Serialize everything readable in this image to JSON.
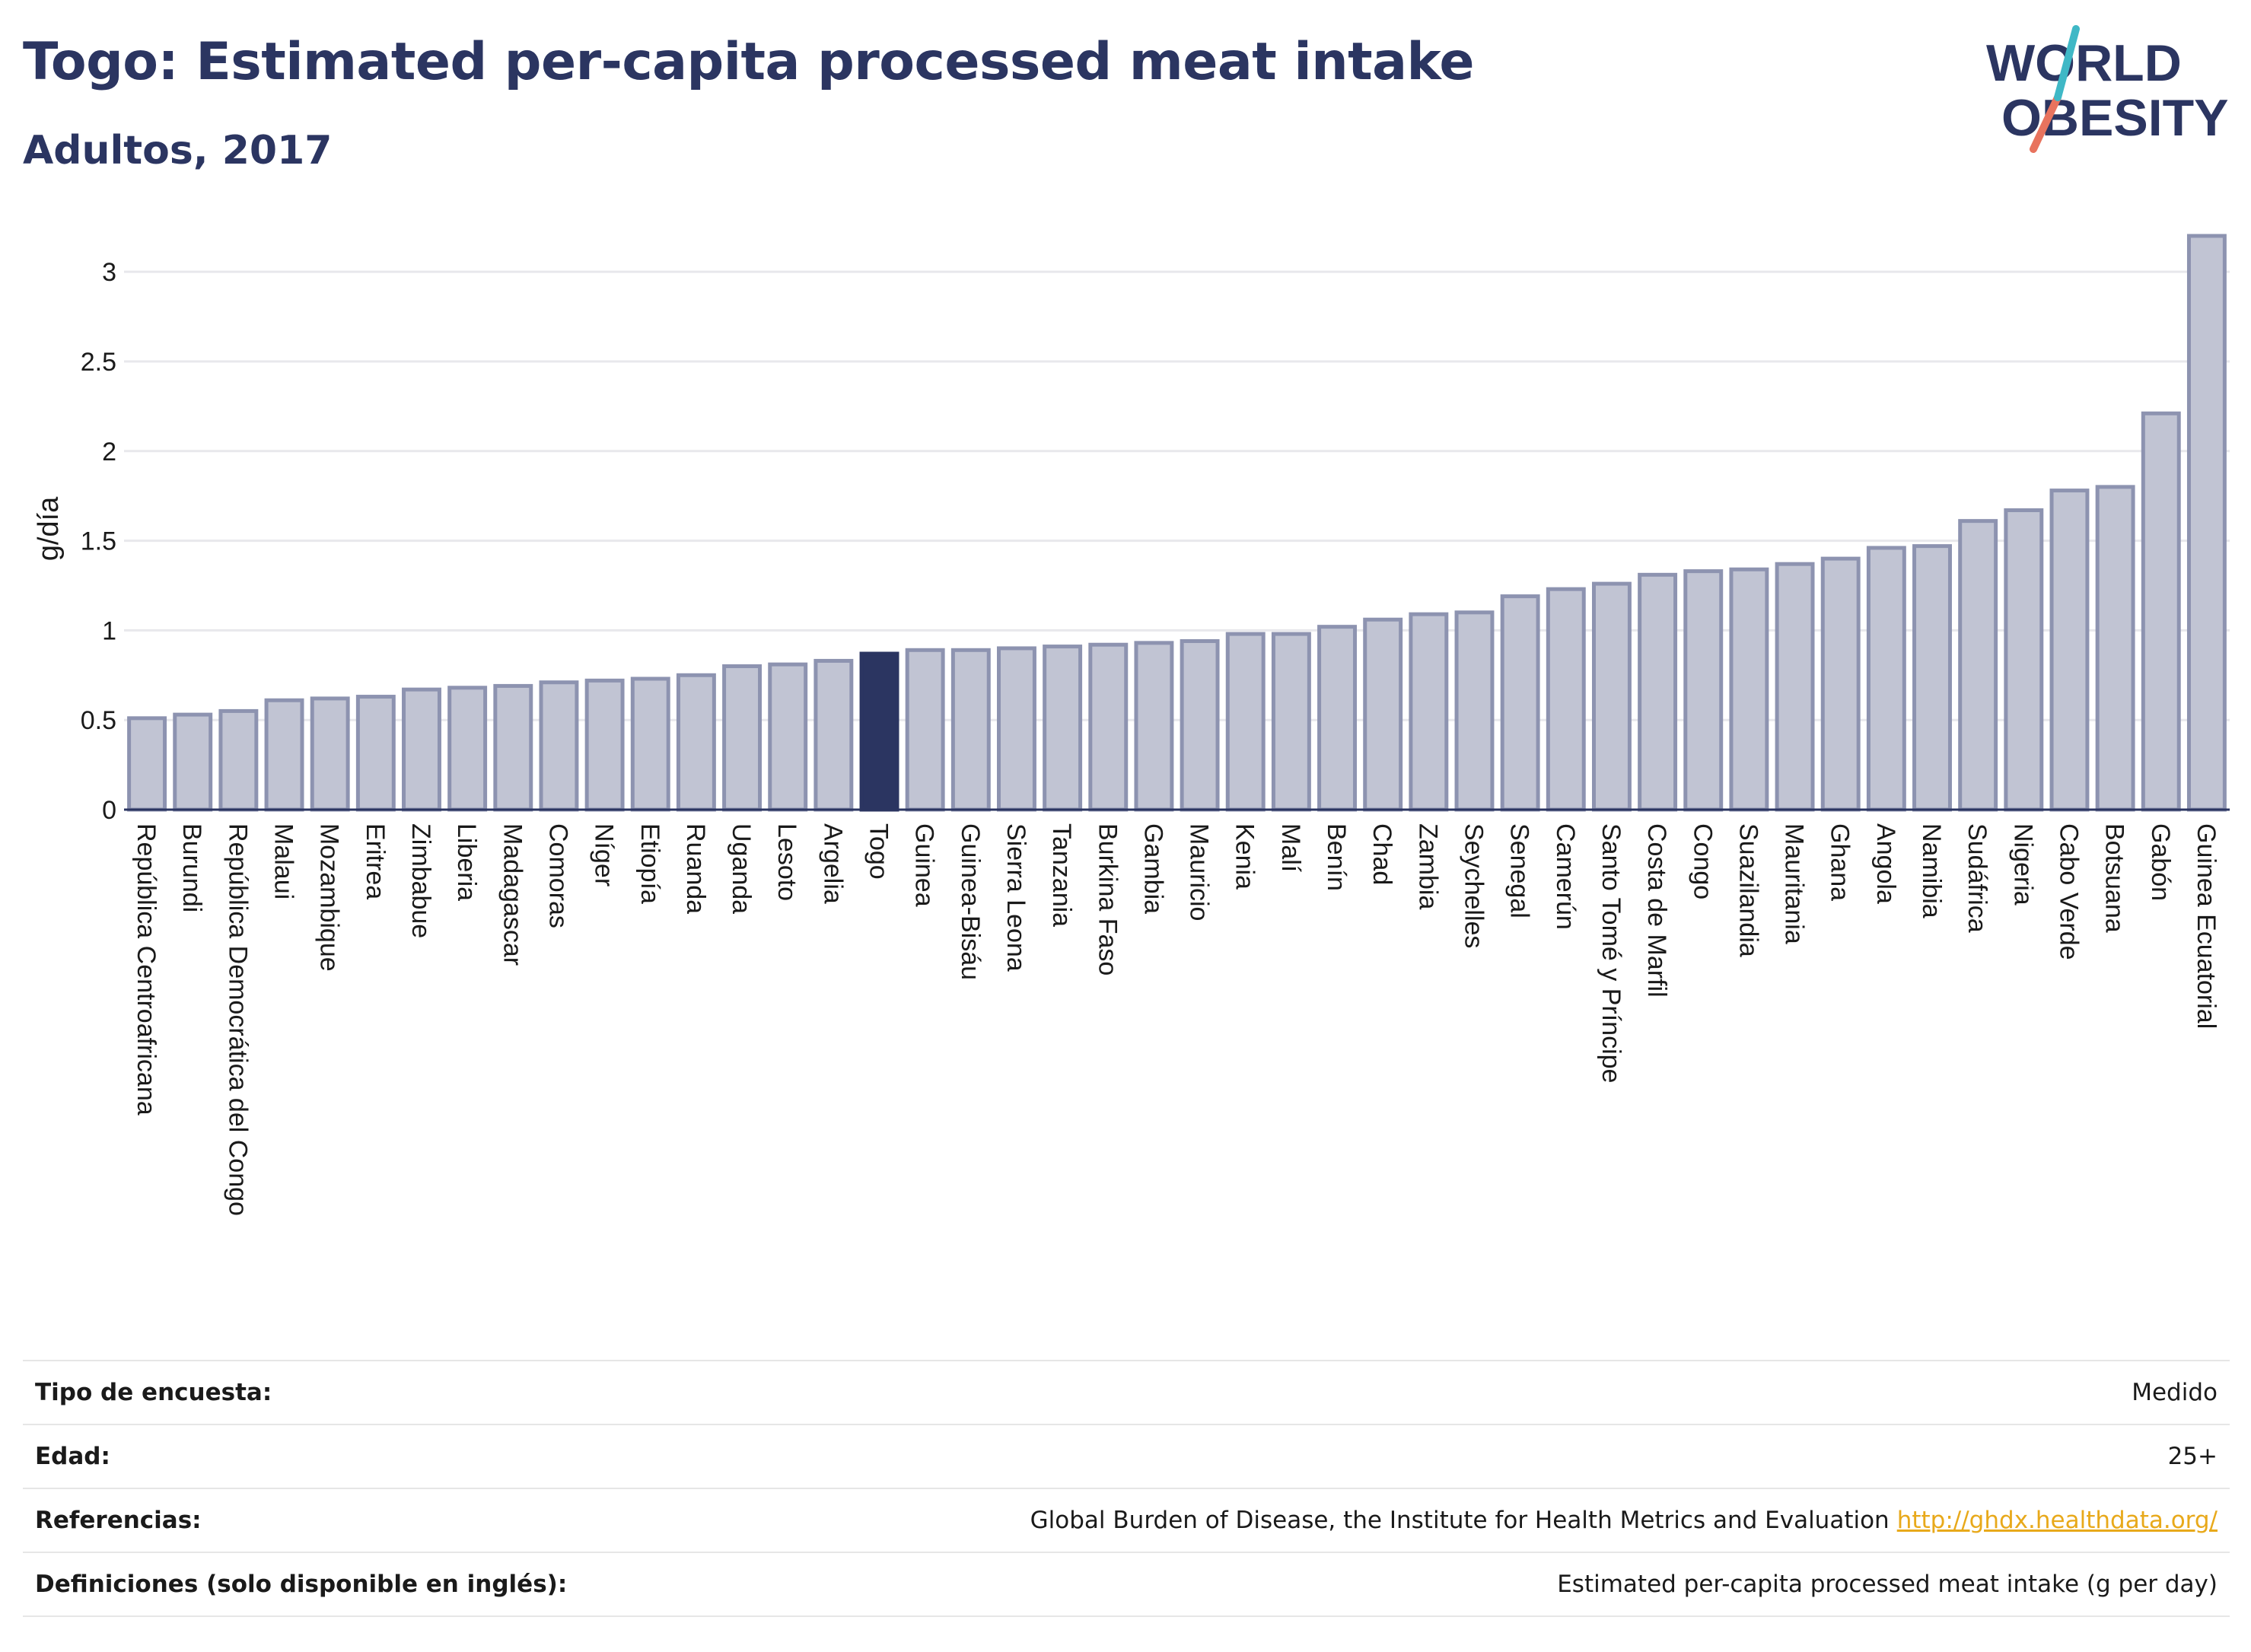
{
  "header": {
    "title": "Togo: Estimated per-capita processed meat intake",
    "subtitle": "Adultos, 2017"
  },
  "logo": {
    "line1": "WORLD",
    "line2": "OBESITY"
  },
  "colors": {
    "bar": "#c1c4d3",
    "bar_border": "#8d93b0",
    "highlight": "#2b3561",
    "logo_teal": "#3fb8c6",
    "logo_coral": "#e8735e"
  },
  "chart_data": {
    "type": "bar",
    "title": "Togo: Estimated per-capita processed meat intake",
    "subtitle": "Adultos, 2017",
    "ylabel": "g/día",
    "ylim": [
      0,
      3.2
    ],
    "yticks": [
      0,
      0.5,
      1,
      1.5,
      2,
      2.5,
      3
    ],
    "grid": true,
    "highlight": "Togo",
    "categories": [
      "República Centroafricana",
      "Burundi",
      "República Democrática del Congo",
      "Malaui",
      "Mozambique",
      "Eritrea",
      "Zimbabue",
      "Liberia",
      "Madagascar",
      "Comoras",
      "Níger",
      "Etiopía",
      "Ruanda",
      "Uganda",
      "Lesoto",
      "Argelia",
      "Togo",
      "Guinea",
      "Guinea-Bisáu",
      "Sierra Leona",
      "Tanzania",
      "Burkina Faso",
      "Gambia",
      "Mauricio",
      "Kenia",
      "Malí",
      "Benín",
      "Chad",
      "Zambia",
      "Seychelles",
      "Senegal",
      "Camerún",
      "Santo Tomé y Príncipe",
      "Costa de Marfil",
      "Congo",
      "Suazilandia",
      "Mauritania",
      "Ghana",
      "Angola",
      "Namibia",
      "Sudáfrica",
      "Nigeria",
      "Cabo Verde",
      "Botsuana",
      "Gabón",
      "Guinea Ecuatorial"
    ],
    "values": [
      0.51,
      0.53,
      0.55,
      0.61,
      0.62,
      0.63,
      0.67,
      0.68,
      0.69,
      0.71,
      0.72,
      0.73,
      0.75,
      0.8,
      0.81,
      0.83,
      0.87,
      0.89,
      0.89,
      0.9,
      0.91,
      0.92,
      0.93,
      0.94,
      0.98,
      0.98,
      1.02,
      1.06,
      1.09,
      1.1,
      1.19,
      1.23,
      1.26,
      1.31,
      1.33,
      1.34,
      1.37,
      1.4,
      1.46,
      1.47,
      1.61,
      1.67,
      1.78,
      1.8,
      2.21,
      3.2
    ]
  },
  "meta": [
    {
      "key": "Tipo de encuesta:",
      "value": "Medido"
    },
    {
      "key": "Edad:",
      "value": "25+"
    },
    {
      "key": "Referencias:",
      "value": "Global Burden of Disease, the Institute for Health Metrics and Evaluation",
      "link": "http://ghdx.healthdata.org/"
    },
    {
      "key": "Definiciones (solo disponible en inglés):",
      "value": "Estimated per-capita processed meat intake (g per day)"
    }
  ]
}
